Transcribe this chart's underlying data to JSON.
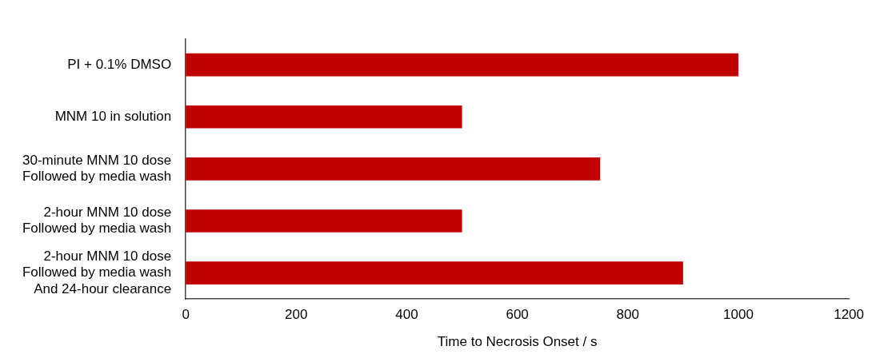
{
  "chart_data": {
    "type": "bar",
    "orientation": "horizontal",
    "xlabel": "Time to Necrosis Onset / s",
    "categories": [
      "PI + 0.1% DMSO",
      "MNM 10 in solution",
      "30-minute MNM 10 dose\nFollowed by media wash",
      "2-hour MNM 10 dose\nFollowed by media wash",
      "2-hour MNM 10 dose\nFollowed by media wash\nAnd 24-hour clearance"
    ],
    "values": [
      1000,
      500,
      750,
      500,
      900
    ],
    "color": "#c00000",
    "xlim": [
      0,
      1200
    ],
    "xticks": [
      0,
      200,
      400,
      600,
      800,
      1000,
      1200
    ],
    "grid": false,
    "legend": false
  }
}
